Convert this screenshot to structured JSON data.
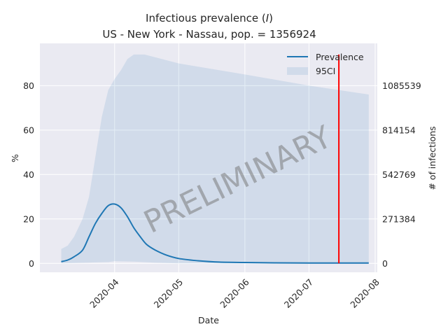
{
  "chart_data": {
    "type": "area",
    "title_prefix": "Infectious prevalence (",
    "title_symbol": "I",
    "title_suffix": ")",
    "subtitle": "US - New York - Nassau, pop. = 1356924",
    "xlabel": "Date",
    "ylabel": "%",
    "y2label": "# of infections",
    "x_ticks": [
      "2020-04",
      "2020-05",
      "2020-06",
      "2020-07",
      "2020-08"
    ],
    "y_ticks": [
      0,
      20,
      40,
      60,
      80
    ],
    "y2_ticks": [
      "0",
      "271384",
      "542769",
      "814154",
      "1085539"
    ],
    "xlim": [
      "2020-02-26",
      "2020-08-02"
    ],
    "ylim": [
      -4,
      99
    ],
    "grid": true,
    "legend_position": "top-right",
    "watermark": "PRELIMINARY",
    "colors": {
      "line": "#1f77b4",
      "band": "#1f77b4",
      "marker": "#ff0000",
      "background": "#eaeaf2",
      "grid": "#ffffff"
    },
    "series": [
      {
        "name": "Prevalence",
        "kind": "line",
        "points": [
          [
            "2020-03-07",
            0.8
          ],
          [
            "2020-03-10",
            1.5
          ],
          [
            "2020-03-13",
            3.0
          ],
          [
            "2020-03-17",
            6.0
          ],
          [
            "2020-03-20",
            12.0
          ],
          [
            "2020-03-23",
            18.0
          ],
          [
            "2020-03-26",
            22.5
          ],
          [
            "2020-03-29",
            26.0
          ],
          [
            "2020-04-01",
            26.7
          ],
          [
            "2020-04-04",
            25.0
          ],
          [
            "2020-04-07",
            21.0
          ],
          [
            "2020-04-10",
            16.0
          ],
          [
            "2020-04-13",
            12.0
          ],
          [
            "2020-04-16",
            8.5
          ],
          [
            "2020-04-20",
            6.0
          ],
          [
            "2020-04-25",
            3.8
          ],
          [
            "2020-05-01",
            2.2
          ],
          [
            "2020-05-10",
            1.2
          ],
          [
            "2020-05-20",
            0.6
          ],
          [
            "2020-06-01",
            0.4
          ],
          [
            "2020-06-15",
            0.25
          ],
          [
            "2020-07-01",
            0.2
          ],
          [
            "2020-07-15",
            0.2
          ],
          [
            "2020-07-29",
            0.2
          ]
        ]
      },
      {
        "name": "95CI",
        "kind": "band",
        "upper": [
          [
            "2020-03-07",
            6.5
          ],
          [
            "2020-03-10",
            8.0
          ],
          [
            "2020-03-13",
            12.0
          ],
          [
            "2020-03-17",
            20.0
          ],
          [
            "2020-03-20",
            30.0
          ],
          [
            "2020-03-23",
            48.0
          ],
          [
            "2020-03-26",
            66.0
          ],
          [
            "2020-03-29",
            78.0
          ],
          [
            "2020-04-01",
            83.0
          ],
          [
            "2020-04-04",
            87.0
          ],
          [
            "2020-04-07",
            92.0
          ],
          [
            "2020-04-10",
            94.0
          ],
          [
            "2020-04-15",
            94.0
          ],
          [
            "2020-05-01",
            90.0
          ],
          [
            "2020-06-01",
            85.0
          ],
          [
            "2020-07-01",
            80.0
          ],
          [
            "2020-07-29",
            76.0
          ]
        ],
        "lower": [
          [
            "2020-03-07",
            0.0
          ],
          [
            "2020-03-29",
            0.6
          ],
          [
            "2020-04-01",
            1.0
          ],
          [
            "2020-04-10",
            0.8
          ],
          [
            "2020-04-20",
            0.3
          ],
          [
            "2020-05-01",
            0.0
          ],
          [
            "2020-07-29",
            0.0
          ]
        ]
      }
    ],
    "vertical_marker": {
      "x": "2020-07-15",
      "y_range": [
        0,
        94
      ]
    }
  }
}
